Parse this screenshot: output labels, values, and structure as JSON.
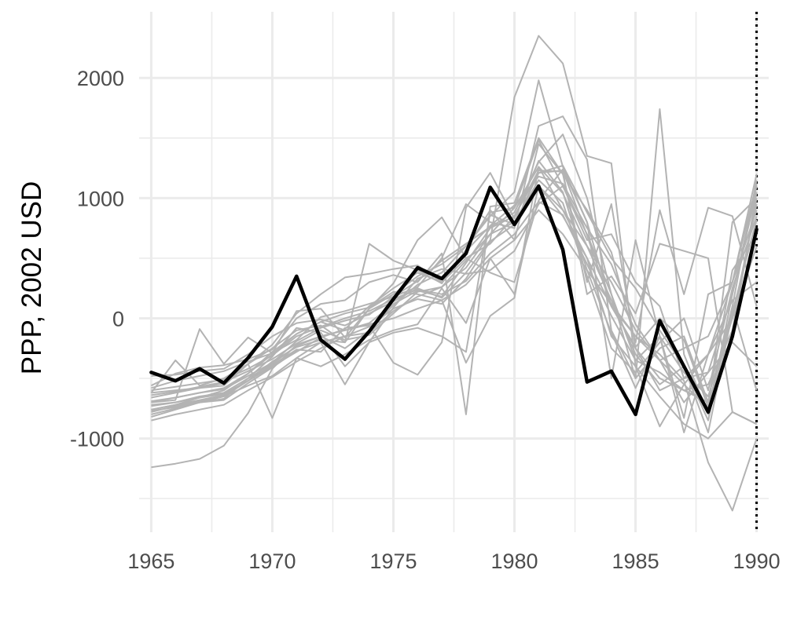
{
  "chart_data": {
    "type": "line",
    "title": "",
    "xlabel": "",
    "ylabel": "PPP, 2002 USD",
    "x": [
      1965,
      1966,
      1967,
      1968,
      1969,
      1970,
      1971,
      1972,
      1973,
      1974,
      1975,
      1976,
      1977,
      1978,
      1979,
      1980,
      1981,
      1982,
      1983,
      1984,
      1985,
      1986,
      1987,
      1988,
      1989,
      1990
    ],
    "xlim": [
      1964.5,
      1990.5
    ],
    "ylim": [
      -1780,
      2550
    ],
    "x_ticks": [
      1965,
      1970,
      1975,
      1980,
      1985,
      1990
    ],
    "x_tick_labels": [
      "1965",
      "1970",
      "1975",
      "1980",
      "1985",
      "1990"
    ],
    "y_ticks": [
      -1000,
      0,
      1000,
      2000
    ],
    "y_tick_labels": [
      "-1000",
      "0",
      "1000",
      "2000"
    ],
    "grid": true,
    "reference_line": {
      "x": 1990,
      "style": "dotted",
      "color": "#000000"
    },
    "highlight_color": "#000000",
    "background_series_color": "#b3b3b3",
    "grid_color": "#ebebeb",
    "highlighted_series": {
      "values": [
        -450,
        -520,
        -420,
        -540,
        -330,
        -70,
        350,
        -180,
        -340,
        -110,
        160,
        420,
        330,
        540,
        1090,
        780,
        1100,
        570,
        -530,
        -440,
        -800,
        -20,
        -400,
        -780,
        -150,
        740
      ]
    },
    "background_series": [
      {
        "values": [
          -1240,
          -1210,
          -1170,
          -1060,
          -790,
          -420,
          -220,
          -150,
          -100,
          -50,
          0,
          80,
          150,
          280,
          500,
          650,
          900,
          700,
          400,
          120,
          -150,
          -300,
          -520,
          -1200,
          -1600,
          -1000
        ]
      },
      {
        "values": [
          -480,
          -470,
          -440,
          -420,
          -300,
          -150,
          -40,
          -10,
          -60,
          40,
          140,
          250,
          170,
          380,
          650,
          1840,
          2350,
          2120,
          1350,
          1290,
          -400,
          -650,
          -880,
          -1000,
          -780,
          -880
        ]
      },
      {
        "values": [
          -620,
          -350,
          -560,
          -500,
          -380,
          -250,
          -100,
          -60,
          -200,
          80,
          200,
          350,
          450,
          600,
          850,
          1050,
          1980,
          1260,
          800,
          100,
          -150,
          -350,
          -550,
          -750,
          800,
          1000
        ]
      },
      {
        "values": [
          -700,
          -680,
          -90,
          -380,
          -160,
          -290,
          -180,
          10,
          60,
          120,
          180,
          260,
          500,
          950,
          800,
          750,
          1600,
          1680,
          1320,
          -100,
          -500,
          1740,
          -300,
          -800,
          200,
          1050
        ]
      },
      {
        "values": [
          -760,
          -720,
          -660,
          -630,
          -520,
          -360,
          -240,
          -180,
          -200,
          620,
          480,
          400,
          290,
          570,
          900,
          650,
          1450,
          1200,
          300,
          950,
          -250,
          -600,
          -500,
          -300,
          300,
          900
        ]
      },
      {
        "values": [
          -820,
          -760,
          -700,
          -680,
          -540,
          -410,
          -270,
          -200,
          -150,
          -120,
          60,
          180,
          260,
          420,
          700,
          920,
          1260,
          1040,
          600,
          150,
          -300,
          -550,
          -400,
          -850,
          100,
          1150
        ]
      },
      {
        "values": [
          -580,
          -520,
          -480,
          -440,
          -360,
          -290,
          60,
          80,
          -160,
          80,
          290,
          650,
          840,
          500,
          380,
          300,
          980,
          1240,
          800,
          -500,
          650,
          -150,
          -450,
          -650,
          0,
          950
        ]
      },
      {
        "values": [
          -800,
          -750,
          -700,
          -650,
          -560,
          -480,
          -330,
          -400,
          -300,
          -180,
          -100,
          -50,
          250,
          -40,
          500,
          200,
          1100,
          900,
          500,
          -150,
          -400,
          -900,
          -550,
          -300,
          0,
          600
        ]
      },
      {
        "values": [
          -660,
          -620,
          -580,
          -560,
          -380,
          -830,
          -330,
          -200,
          -550,
          -200,
          -120,
          -80,
          -150,
          -280,
          880,
          920,
          1480,
          1100,
          700,
          200,
          -350,
          -450,
          -600,
          -700,
          -150,
          1050
        ]
      },
      {
        "values": [
          -720,
          -700,
          -660,
          -600,
          -460,
          -280,
          -130,
          -30,
          -100,
          -40,
          120,
          230,
          180,
          460,
          750,
          850,
          1210,
          1230,
          690,
          100,
          -240,
          0,
          -180,
          -740,
          100,
          -600
        ]
      },
      {
        "values": [
          -560,
          -460,
          -410,
          -390,
          -340,
          -260,
          0,
          120,
          150,
          300,
          360,
          300,
          540,
          -800,
          930,
          960,
          1500,
          1200,
          900,
          550,
          -200,
          900,
          200,
          920,
          850,
          100
        ]
      },
      {
        "values": [
          -760,
          -720,
          -680,
          -640,
          -520,
          -390,
          -260,
          -280,
          -80,
          -60,
          -370,
          -470,
          -200,
          920,
          1210,
          830,
          1310,
          1050,
          400,
          -120,
          -580,
          -150,
          -830,
          200,
          300,
          1120
        ]
      },
      {
        "values": [
          -620,
          -600,
          -580,
          -540,
          -380,
          -220,
          40,
          200,
          340,
          370,
          410,
          440,
          300,
          500,
          620,
          850,
          1230,
          1220,
          200,
          350,
          40,
          620,
          560,
          500,
          -780,
          -880
        ]
      },
      {
        "values": [
          -690,
          -660,
          -620,
          -580,
          -460,
          -300,
          -130,
          -30,
          40,
          90,
          220,
          200,
          150,
          -370,
          20,
          170,
          1260,
          900,
          600,
          300,
          -100,
          -350,
          -250,
          -150,
          300,
          1200
        ]
      },
      {
        "values": [
          -850,
          -800,
          -760,
          -720,
          -600,
          -490,
          -360,
          -250,
          -150,
          -70,
          80,
          160,
          120,
          330,
          640,
          780,
          1100,
          850,
          500,
          100,
          -250,
          -500,
          -600,
          -550,
          -100,
          1000
        ]
      },
      {
        "values": [
          -770,
          -740,
          -700,
          -670,
          -500,
          -320,
          -80,
          -120,
          -400,
          -200,
          90,
          330,
          410,
          370,
          400,
          560,
          950,
          1100,
          650,
          700,
          300,
          100,
          -500,
          -450,
          -200,
          -400
        ]
      },
      {
        "values": [
          -640,
          -610,
          -570,
          -530,
          -440,
          -340,
          -210,
          -100,
          -180,
          -140,
          40,
          220,
          260,
          480,
          700,
          800,
          1150,
          960,
          350,
          -250,
          -450,
          -200,
          0,
          -600,
          250,
          850
        ]
      },
      {
        "values": [
          -700,
          -660,
          -620,
          -590,
          -480,
          -370,
          -190,
          -80,
          -20,
          30,
          180,
          310,
          480,
          620,
          760,
          880,
          1300,
          1530,
          1000,
          200,
          -500,
          -250,
          -150,
          -700,
          400,
          700
        ]
      },
      {
        "values": [
          -780,
          -730,
          -690,
          -650,
          -520,
          -400,
          -280,
          -160,
          -90,
          100,
          250,
          380,
          300,
          560,
          770,
          940,
          1180,
          1120,
          750,
          450,
          -50,
          -350,
          -700,
          -450,
          200,
          1100
        ]
      },
      {
        "values": [
          -600,
          -570,
          -540,
          -510,
          -420,
          -310,
          -150,
          -70,
          0,
          60,
          160,
          240,
          200,
          310,
          540,
          700,
          970,
          860,
          450,
          20,
          -350,
          -150,
          -950,
          -300,
          150,
          300
        ]
      },
      {
        "values": [
          -730,
          -700,
          -650,
          -620,
          -500,
          -380,
          -230,
          -150,
          -250,
          -100,
          110,
          280,
          380,
          600,
          860,
          780,
          1210,
          1270,
          880,
          500,
          250,
          -100,
          -400,
          -950,
          50,
          820
        ]
      }
    ]
  }
}
